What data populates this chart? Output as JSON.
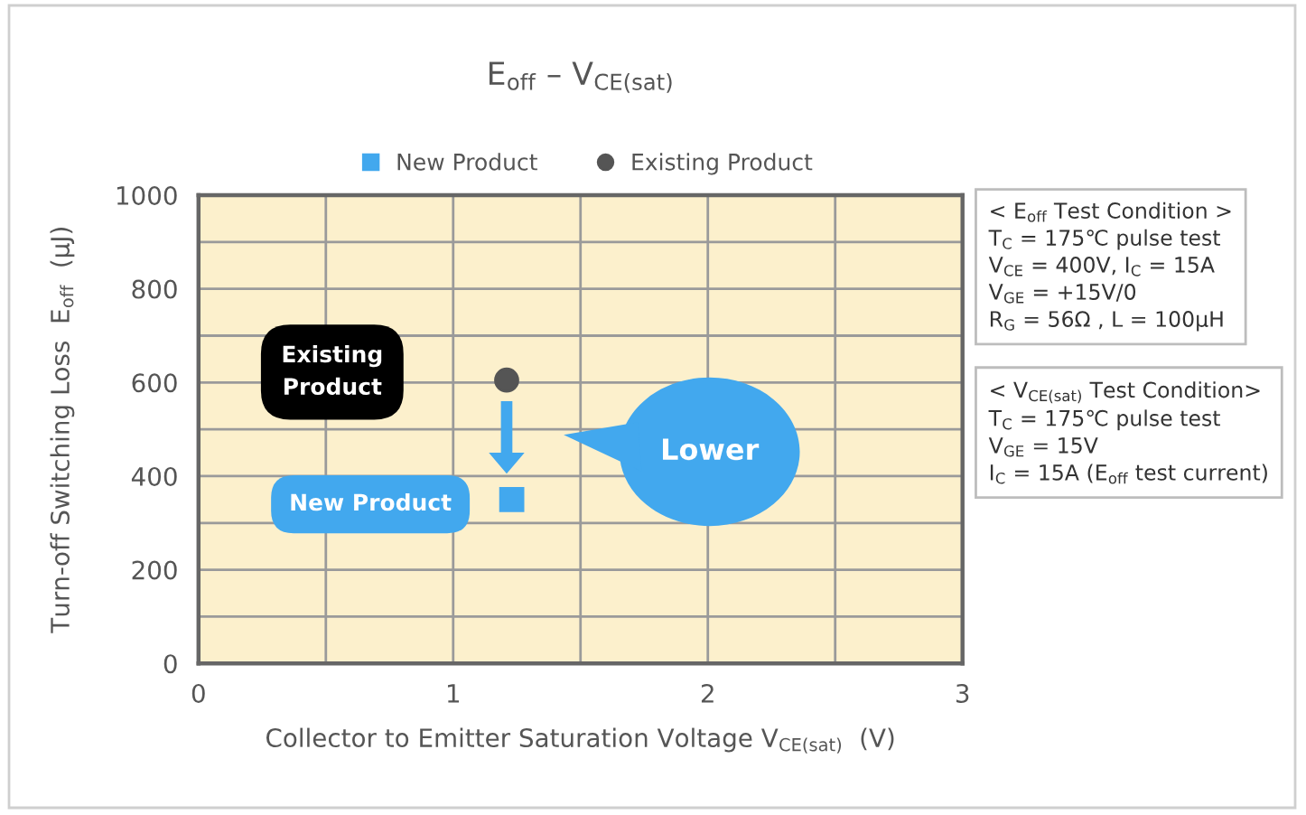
{
  "chart_data": {
    "type": "scatter",
    "title": "E$_{off}$ – V$_{CE(sat)}$",
    "xlabel": "Collector to Emitter Saturation Voltage V$_{CE(sat)}$  (V)",
    "ylabel": "Turn-off Switching Loss  E$_{off}$  (μJ)",
    "series": [
      {
        "name": "New Product",
        "color": "#42a8ee",
        "marker": "square",
        "x": [
          1.23
        ],
        "values": [
          350
        ]
      },
      {
        "name": "Existing Product",
        "color": "#555555",
        "marker": "circle",
        "x": [
          1.21
        ],
        "values": [
          605
        ]
      }
    ],
    "xlim": [
      0,
      3
    ],
    "xticks": [
      0,
      {
        "value": 0.5,
        "label": null
      },
      1,
      {
        "value": 1.5,
        "label": null
      },
      2,
      {
        "value": 2.5,
        "label": null
      },
      3
    ],
    "ylim": [
      0,
      1000
    ],
    "yticks": [
      0,
      {
        "value": 100,
        "label": null
      },
      200,
      {
        "value": 300,
        "label": null
      },
      400,
      {
        "value": 500,
        "label": null
      },
      600,
      {
        "value": 700,
        "label": null
      },
      800,
      {
        "value": 900,
        "label": null
      },
      1000
    ],
    "grid": true,
    "legend": "top",
    "annotations": [
      "Existing\nProduct",
      "New Product",
      "Lower",
      "< E$_{off}$ Test Condition >\nT$_{C}$ = 175℃ pulse test\nV$_{CE}$ = 400V, I$_{C}$ = 15A\nV$_{GE}$ = +15V/0\nR$_{G}$ = 56Ω , L = 100μH",
      "< V$_{CE(sat)}$ Test Condition>\nT$_{C}$ = 175℃ pulse test\nV$_{GE}$ = 15V\nI$_{C}$ = 15A (E$_{off}$ test current)"
    ]
  }
}
